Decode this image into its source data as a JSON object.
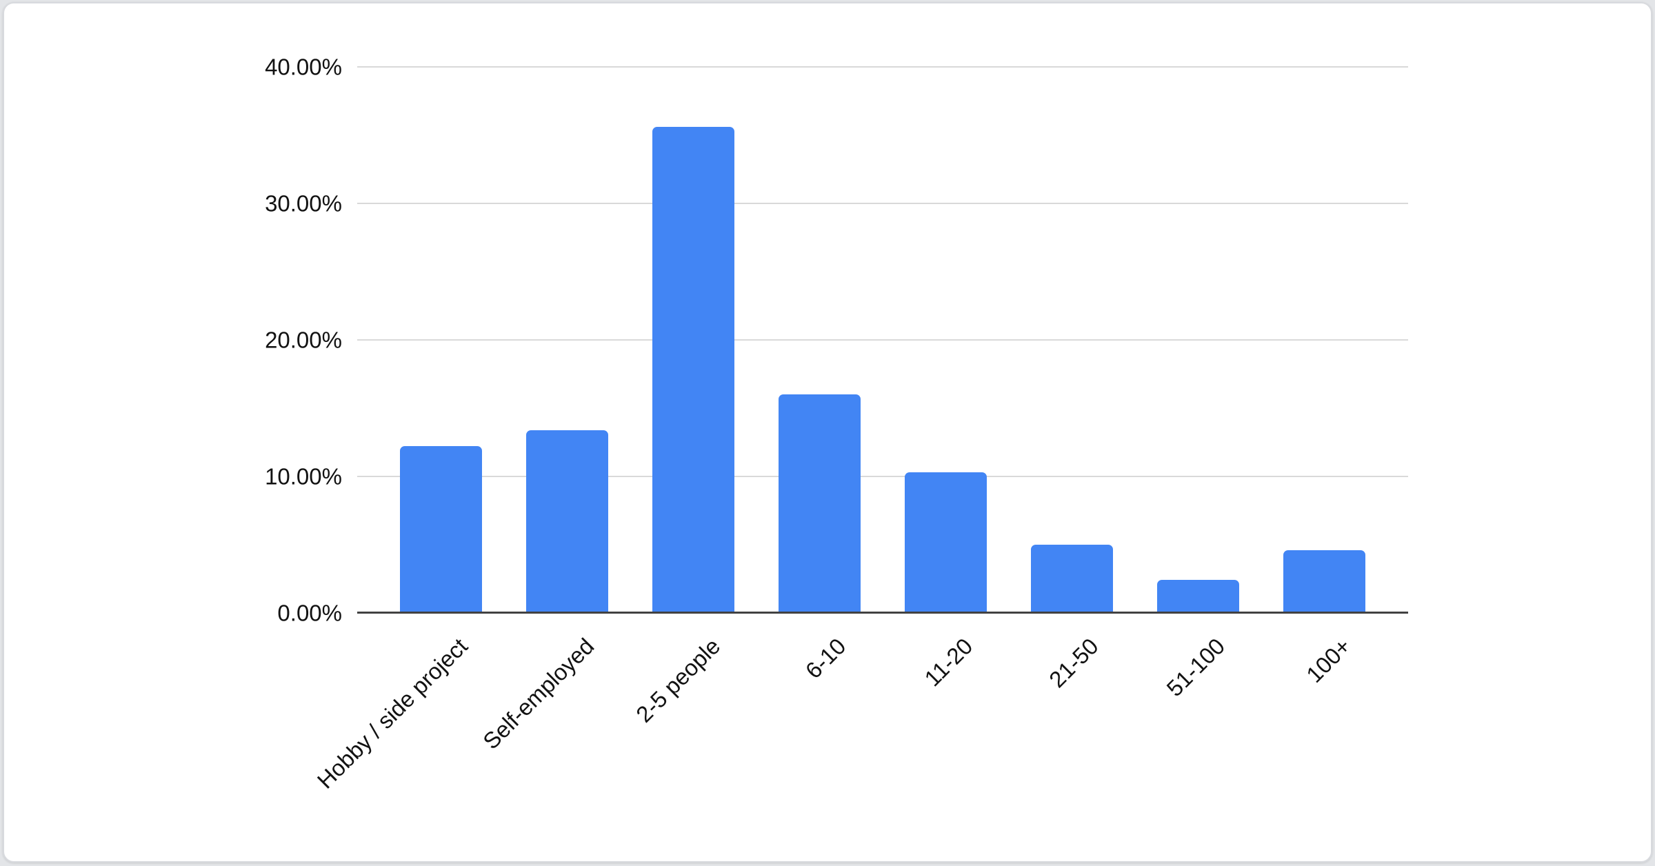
{
  "page": {
    "background_color": "#e3e5e8"
  },
  "card": {
    "background_color": "#ffffff",
    "border_color": "#d8dade"
  },
  "chart_data": {
    "type": "bar",
    "title": "",
    "xlabel": "",
    "ylabel": "",
    "categories": [
      "Hobby / side project",
      "Self-employed",
      "2-5 people",
      "6-10",
      "11-20",
      "21-50",
      "51-100",
      "100+"
    ],
    "values": [
      12.2,
      13.4,
      35.6,
      16.0,
      10.3,
      5.0,
      2.4,
      4.6
    ],
    "ylim": [
      0,
      40
    ],
    "yticks": [
      {
        "value": 0,
        "label": "0.00%"
      },
      {
        "value": 10,
        "label": "10.00%"
      },
      {
        "value": 20,
        "label": "20.00%"
      },
      {
        "value": 30,
        "label": "30.00%"
      },
      {
        "value": 40,
        "label": "40.00%"
      }
    ],
    "x_label_rotation_deg": -45,
    "grid": true,
    "legend_position": "none",
    "colors": {
      "bar": "#4285f4",
      "gridline": "#d9d9d9",
      "axis_line": "#424242",
      "tick_label": "#121212"
    }
  }
}
